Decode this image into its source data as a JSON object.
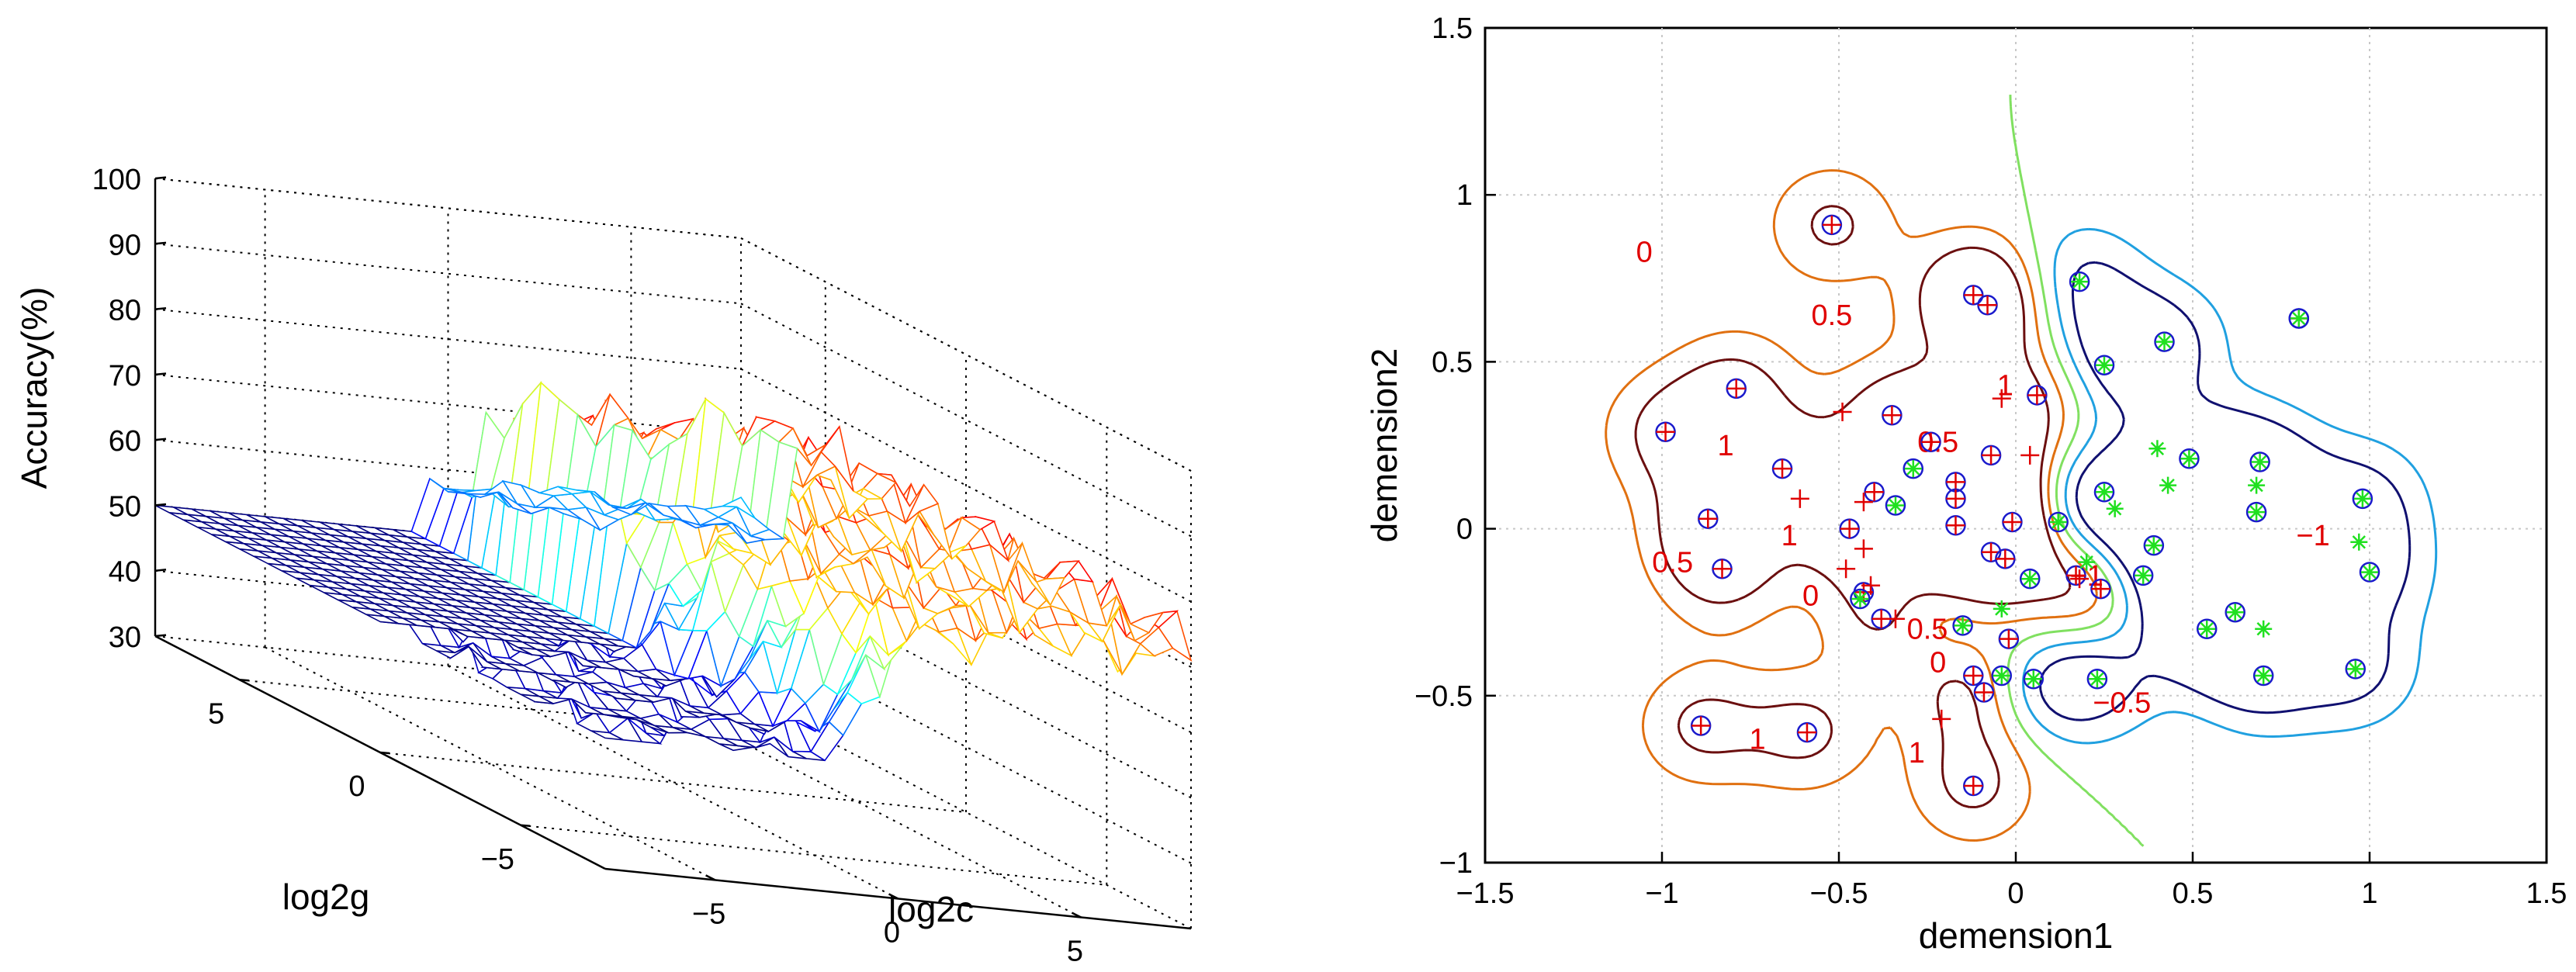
{
  "chart_data": [
    {
      "type": "surface3d",
      "xlabel": "log2c",
      "ylabel": "log2g",
      "zlabel": "Accuracy(%)",
      "xlim": [
        -8,
        8
      ],
      "ylim": [
        -8,
        8
      ],
      "zlim": [
        30,
        100
      ],
      "xticks": [
        "−5",
        "0",
        "5"
      ],
      "yticks": [
        "−5",
        "0",
        "5"
      ],
      "zticks": [
        "30",
        "40",
        "50",
        "60",
        "70",
        "80",
        "90",
        "100"
      ],
      "grid": true,
      "plateau": {
        "log2g_min": 0,
        "log2c_max": -1,
        "accuracy": 50
      },
      "peak_region": {
        "accuracy_min": 68,
        "accuracy_max": 80
      },
      "colormap": "jet"
    },
    {
      "type": "contour",
      "xlabel": "demension1",
      "ylabel": "demension2",
      "xlim": [
        -1.5,
        1.5
      ],
      "ylim": [
        -1,
        1.5
      ],
      "xticks": [
        "−1.5",
        "−1",
        "−0.5",
        "0",
        "0.5",
        "1",
        "1.5"
      ],
      "yticks": [
        "−1",
        "−0.5",
        "0",
        "0.5",
        "1",
        "1.5"
      ],
      "grid": true,
      "contour_labels": [
        "0",
        "0.5",
        "1",
        "1",
        "0.5",
        "0",
        "1",
        "1",
        "−0.5",
        "−1",
        "0",
        "1",
        "−1",
        "0.5",
        "0.5"
      ],
      "level_colors": {
        "1": "#6b0f0f",
        "0.5": "#e07010",
        "0": "#80e060",
        "-0.5": "#20a0e0",
        "-1": "#101070"
      },
      "class1_points": [
        [
          -0.52,
          0.91
        ],
        [
          -0.12,
          0.7
        ],
        [
          -0.08,
          0.67
        ],
        [
          0.06,
          0.4
        ],
        [
          -0.79,
          0.42
        ],
        [
          -0.99,
          0.29
        ],
        [
          -0.66,
          0.18
        ],
        [
          -0.87,
          0.03
        ],
        [
          -0.83,
          -0.12
        ],
        [
          -0.47,
          0
        ],
        [
          -0.43,
          -0.19
        ],
        [
          -0.38,
          -0.27
        ],
        [
          -0.4,
          0.11
        ],
        [
          -0.35,
          0.34
        ],
        [
          -0.24,
          0.26
        ],
        [
          -0.07,
          0.22
        ],
        [
          -0.17,
          0.14
        ],
        [
          -0.17,
          0.09
        ],
        [
          -0.17,
          0.01
        ],
        [
          -0.01,
          0.02
        ],
        [
          -0.07,
          -0.07
        ],
        [
          -0.03,
          -0.09
        ],
        [
          -0.02,
          -0.33
        ],
        [
          -0.12,
          -0.44
        ],
        [
          -0.09,
          -0.49
        ],
        [
          -0.12,
          -0.77
        ],
        [
          -0.89,
          -0.59
        ],
        [
          -0.59,
          -0.61
        ],
        [
          0.17,
          -0.14
        ],
        [
          0.24,
          -0.18
        ],
        [
          0.8,
          0.63
        ]
      ],
      "class1_markers": [
        [
          -0.61,
          0.09
        ],
        [
          -0.48,
          -0.12
        ],
        [
          -0.43,
          -0.06
        ],
        [
          -0.41,
          -0.17
        ],
        [
          -0.34,
          -0.27
        ],
        [
          -0.49,
          0.35
        ],
        [
          -0.04,
          0.39
        ],
        [
          0.04,
          0.22
        ],
        [
          0.18,
          -0.15
        ],
        [
          -0.21,
          -0.57
        ],
        [
          -0.43,
          0.08
        ]
      ],
      "class2_points": [
        [
          0.18,
          0.74
        ],
        [
          0.25,
          0.49
        ],
        [
          0.42,
          0.56
        ],
        [
          0.49,
          0.21
        ],
        [
          0.69,
          0.2
        ],
        [
          0.62,
          -0.25
        ],
        [
          0.54,
          -0.3
        ],
        [
          0.7,
          -0.44
        ],
        [
          0.96,
          -0.42
        ],
        [
          1.0,
          -0.13
        ],
        [
          0.98,
          0.09
        ],
        [
          0.8,
          0.63
        ],
        [
          0.36,
          -0.14
        ],
        [
          0.12,
          0.02
        ],
        [
          0.04,
          -0.15
        ],
        [
          -0.04,
          -0.44
        ],
        [
          0.05,
          -0.45
        ],
        [
          0.23,
          -0.45
        ],
        [
          -0.15,
          -0.29
        ],
        [
          -0.29,
          0.18
        ],
        [
          -0.34,
          0.07
        ],
        [
          -0.44,
          -0.21
        ],
        [
          0.25,
          0.11
        ],
        [
          0.39,
          -0.05
        ],
        [
          0.68,
          0.05
        ]
      ],
      "class2_markers": [
        [
          0.4,
          0.24
        ],
        [
          0.43,
          0.13
        ],
        [
          0.68,
          0.13
        ],
        [
          0.28,
          0.06
        ],
        [
          0.2,
          -0.1
        ],
        [
          0.7,
          -0.3
        ],
        [
          0.97,
          -0.04
        ],
        [
          -0.04,
          -0.24
        ]
      ]
    }
  ]
}
